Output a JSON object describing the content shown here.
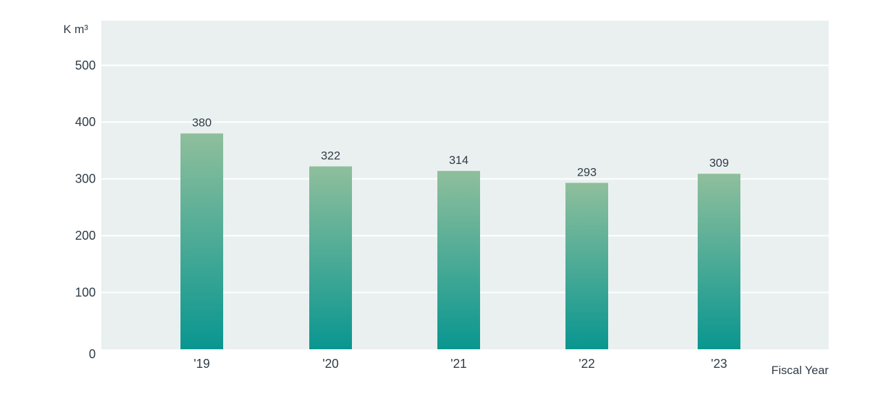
{
  "chart_data": {
    "type": "bar",
    "categories": [
      "'19",
      "'20",
      "'21",
      "'22",
      "'23"
    ],
    "values": [
      380,
      322,
      314,
      293,
      309
    ],
    "title": "",
    "xlabel": "Fiscal Year",
    "ylabel": "K m³",
    "ylim": [
      0,
      580
    ],
    "yticks": [
      0,
      100,
      200,
      300,
      400,
      500
    ],
    "grid": true,
    "data_labels": true,
    "colors": {
      "plot_background": "#eaf0f0",
      "gridline": "#ffffff",
      "bar_top": "#8fbf9c",
      "bar_bottom": "#099690",
      "text": "#2f3b45"
    }
  }
}
